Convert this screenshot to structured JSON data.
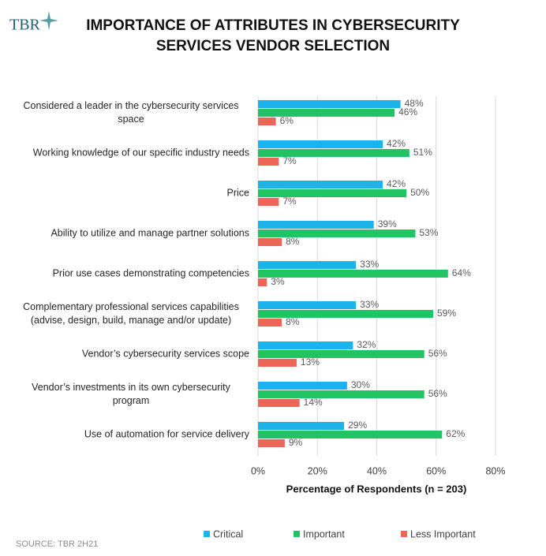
{
  "logo": "TBR",
  "source": "SOURCE: TBR 2H21",
  "chart_data": {
    "type": "hbar",
    "title": [
      "IMPORTANCE OF ATTRIBUTES IN CYBERSECURITY",
      "SERVICES VENDOR SELECTION"
    ],
    "x_label": "Percentage of Respondents (n = 203)",
    "categories": [
      "Considered a leader in the cybersecurity services space",
      "Working knowledge of our specific industry needs",
      "Price",
      "Ability to utilize and manage partner solutions",
      "Prior use cases demonstrating competencies",
      "Complementary professional services capabilities (advise, design, build, manage and/or update)",
      "Vendor’s cybersecurity services scope",
      "Vendor’s investments in its own cybersecurity program",
      "Use of automation for service delivery"
    ],
    "series": [
      {
        "name": "Critical",
        "color": "#1cb3ea",
        "values": [
          48,
          42,
          42,
          39,
          33,
          33,
          32,
          30,
          29
        ],
        "value_labels": [
          "48%",
          "42%",
          "42%",
          "39%",
          "33%",
          "33%",
          "32%",
          "30%",
          "29%"
        ]
      },
      {
        "name": "Important",
        "color": "#20c462",
        "values": [
          46,
          51,
          50,
          53,
          64,
          59,
          56,
          56,
          62
        ],
        "value_labels": [
          "46%",
          "51%",
          "50%",
          "53%",
          "64%",
          "59%",
          "56%",
          "56%",
          "62%"
        ]
      },
      {
        "name": "Less Important",
        "color": "#ec6556",
        "values": [
          6,
          7,
          7,
          8,
          3,
          8,
          13,
          14,
          9
        ],
        "value_labels": [
          "6%",
          "7%",
          "7%",
          "8%",
          "3%",
          "8%",
          "13%",
          "14%",
          "9%"
        ]
      }
    ],
    "xlim": [
      0,
      80
    ],
    "xticks": [
      {
        "value": 0,
        "label": "0%"
      },
      {
        "value": 20,
        "label": "20%"
      },
      {
        "value": 40,
        "label": "40%"
      },
      {
        "value": 60,
        "label": "60%"
      },
      {
        "value": 80,
        "label": "80%"
      }
    ],
    "grid": true,
    "legend": "bottom"
  }
}
